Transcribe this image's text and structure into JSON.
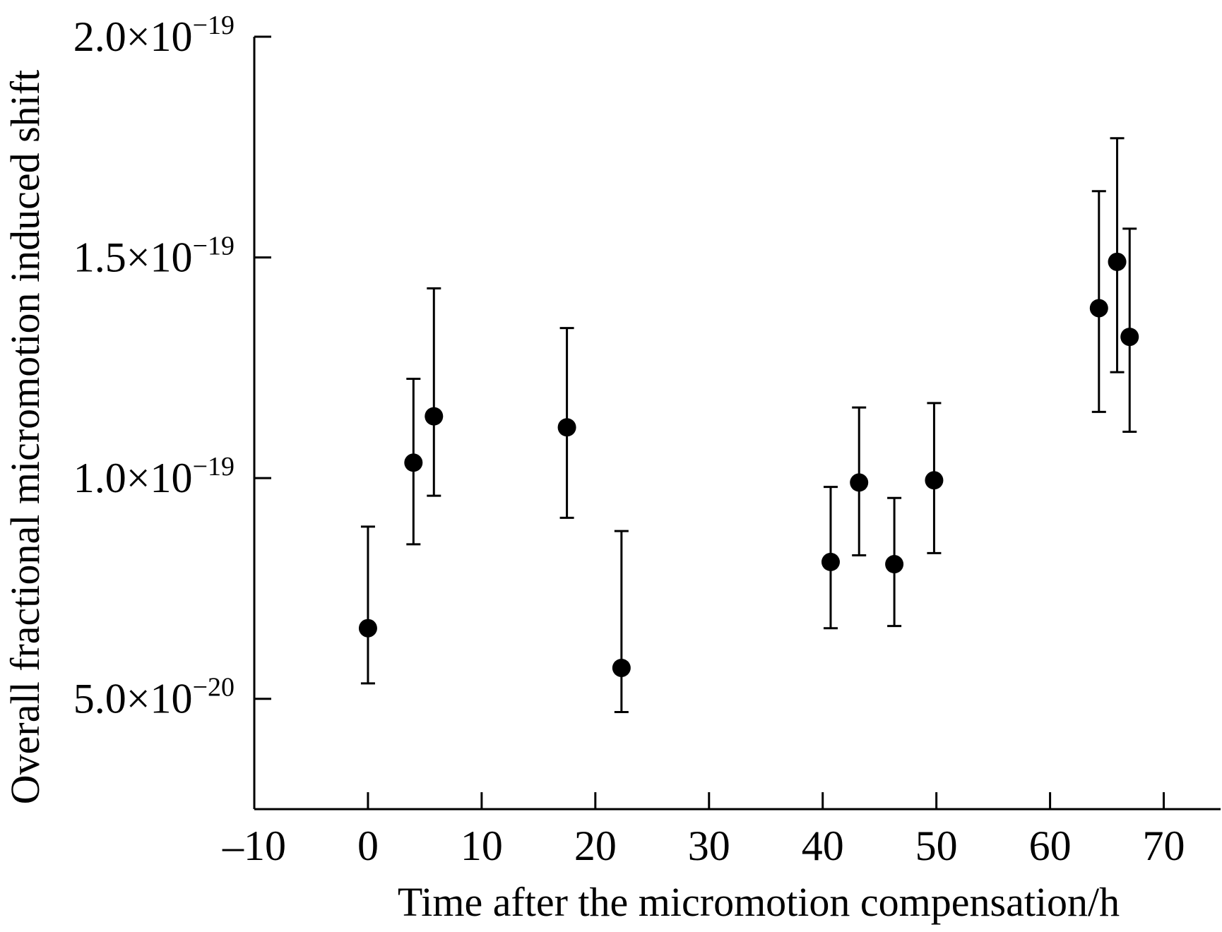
{
  "chart_data": {
    "type": "scatter",
    "title": "",
    "xlabel": "Time after the micromotion compensation/h",
    "ylabel": "Overall fractional micromotion induced shift",
    "xlim": [
      -10,
      75
    ],
    "ylim": [
      2.5e-20,
      2e-19
    ],
    "grid": false,
    "legend": "none",
    "marker_color": "#000000",
    "x_ticks": [
      {
        "value": -10,
        "label": "–10"
      },
      {
        "value": 0,
        "label": "0"
      },
      {
        "value": 10,
        "label": "10"
      },
      {
        "value": 20,
        "label": "20"
      },
      {
        "value": 30,
        "label": "30"
      },
      {
        "value": 40,
        "label": "40"
      },
      {
        "value": 50,
        "label": "50"
      },
      {
        "value": 60,
        "label": "60"
      },
      {
        "value": 70,
        "label": "70"
      }
    ],
    "y_ticks": [
      {
        "value": 5e-20,
        "mantissa": "5.0×10",
        "exponent": "−20"
      },
      {
        "value": 1e-19,
        "mantissa": "1.0×10",
        "exponent": "−19"
      },
      {
        "value": 1.5e-19,
        "mantissa": "1.5×10",
        "exponent": "−19"
      },
      {
        "value": 2e-19,
        "mantissa": "2.0×10",
        "exponent": "−19"
      }
    ],
    "points": [
      {
        "x": 0.0,
        "y": 6.6e-20,
        "err_low": 5.35e-20,
        "err_high": 8.9e-20
      },
      {
        "x": 4.0,
        "y": 1.035e-19,
        "err_low": 8.5e-20,
        "err_high": 1.225e-19
      },
      {
        "x": 5.8,
        "y": 1.14e-19,
        "err_low": 9.6e-20,
        "err_high": 1.43e-19
      },
      {
        "x": 17.5,
        "y": 1.115e-19,
        "err_low": 9.1e-20,
        "err_high": 1.34e-19
      },
      {
        "x": 22.3,
        "y": 5.7e-20,
        "err_low": 4.7e-20,
        "err_high": 8.8e-20
      },
      {
        "x": 40.7,
        "y": 8.1e-20,
        "err_low": 6.6e-20,
        "err_high": 9.8e-20
      },
      {
        "x": 43.2,
        "y": 9.9e-20,
        "err_low": 8.25e-20,
        "err_high": 1.16e-19
      },
      {
        "x": 46.3,
        "y": 8.05e-20,
        "err_low": 6.65e-20,
        "err_high": 9.55e-20
      },
      {
        "x": 49.8,
        "y": 9.95e-20,
        "err_low": 8.3e-20,
        "err_high": 1.17e-19
      },
      {
        "x": 64.3,
        "y": 1.385e-19,
        "err_low": 1.15e-19,
        "err_high": 1.65e-19
      },
      {
        "x": 65.9,
        "y": 1.49e-19,
        "err_low": 1.24e-19,
        "err_high": 1.77e-19
      },
      {
        "x": 67.0,
        "y": 1.32e-19,
        "err_low": 1.105e-19,
        "err_high": 1.565e-19
      }
    ]
  }
}
